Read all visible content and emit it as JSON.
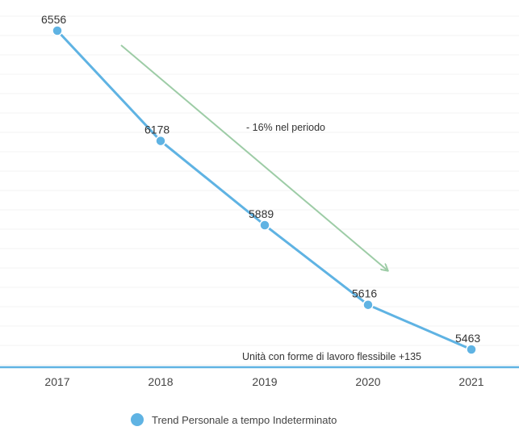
{
  "chart_data": {
    "type": "line",
    "categories": [
      "2017",
      "2018",
      "2019",
      "2020",
      "2021"
    ],
    "series": [
      {
        "name": "Trend Personale a tempo Indeterminato",
        "values": [
          6556,
          6178,
          5889,
          5616,
          5463
        ],
        "color": "#5fb3e3"
      }
    ],
    "data_labels": [
      "6556",
      "6178",
      "5889",
      "5616",
      "5463"
    ],
    "annotations": {
      "trend": "- 16% nel periodo",
      "note": "Unità con forme di lavoro flessibile +135"
    },
    "trend_arrow_color": "#9dcca6",
    "grid": true,
    "legend_position": "bottom"
  }
}
